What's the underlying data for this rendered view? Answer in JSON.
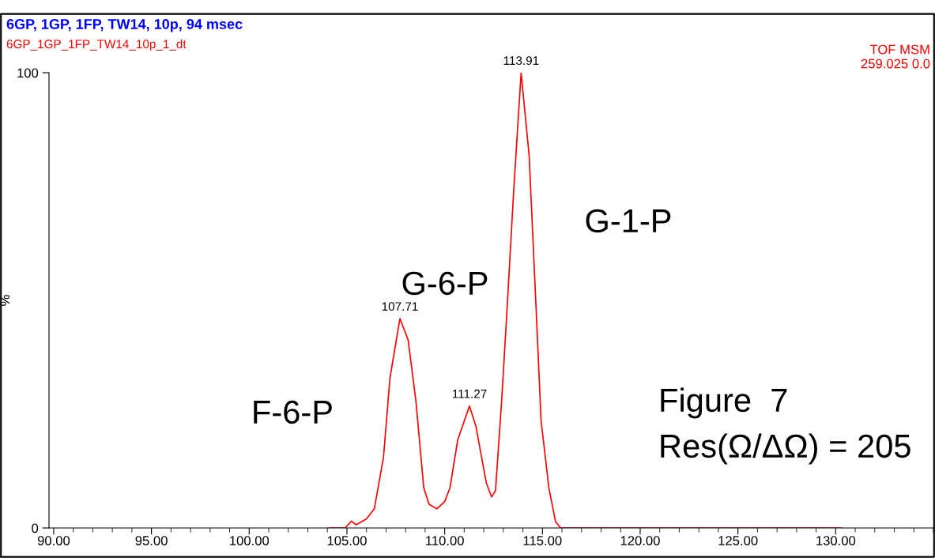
{
  "chart_data": {
    "type": "line",
    "title": "6GP, 1GP, 1FP, TW14, 10p, 94 msec",
    "subtitle": "6GP_1GP_1FP_TW14_10p_1_dt",
    "ylabel": "%",
    "x": [
      104.04,
      104.9,
      105.23,
      105.47,
      106.0,
      106.4,
      106.87,
      107.2,
      107.71,
      108.13,
      108.53,
      108.93,
      109.2,
      109.6,
      110.0,
      110.27,
      110.67,
      111.27,
      111.6,
      112.13,
      112.4,
      112.6,
      112.93,
      113.2,
      113.52,
      113.91,
      114.32,
      114.67,
      114.93,
      115.33,
      115.67,
      115.93,
      130.3
    ],
    "series": [
      {
        "color": "#ff0000",
        "values": [
          0,
          0,
          1.5,
          0.7,
          2.0,
          4.2,
          15.5,
          32.9,
          46.0,
          41.3,
          27.8,
          8.8,
          5.2,
          4.2,
          5.8,
          8.8,
          19.4,
          26.8,
          22.3,
          9.9,
          6.8,
          8.2,
          29,
          48.8,
          73.3,
          100,
          81.8,
          48.8,
          23.6,
          8.8,
          1.4,
          0,
          0
        ]
      }
    ],
    "xlim": [
      89.76,
      135.0
    ],
    "ylim": [
      0,
      100
    ],
    "xticks": [
      {
        "value": 90,
        "label": "90.00"
      },
      {
        "value": 95,
        "label": "95.00"
      },
      {
        "value": 100,
        "label": "100.00"
      },
      {
        "value": 105,
        "label": "105.00"
      },
      {
        "value": 110,
        "label": "110.00"
      },
      {
        "value": 115,
        "label": "115.00"
      },
      {
        "value": 120,
        "label": "120.00"
      },
      {
        "value": 125,
        "label": "125.00"
      },
      {
        "value": 130,
        "label": "130.00"
      }
    ],
    "yticks": [
      0,
      100
    ],
    "marker": "none",
    "line_style": "solid",
    "grid": false,
    "legend": false,
    "annotations": [
      {
        "text": "107.71",
        "x": 107.71,
        "y": 46.0
      },
      {
        "text": "111.27",
        "x": 111.27,
        "y": 26.8
      },
      {
        "text": "113.91",
        "x": 113.91,
        "y": 100
      },
      "TOF MSM",
      "259.025 0.0",
      "F-6-P",
      "G-6-P",
      "G-1-P",
      "Figure  7",
      "Res(Ω/ΔΩ) = 205"
    ]
  }
}
